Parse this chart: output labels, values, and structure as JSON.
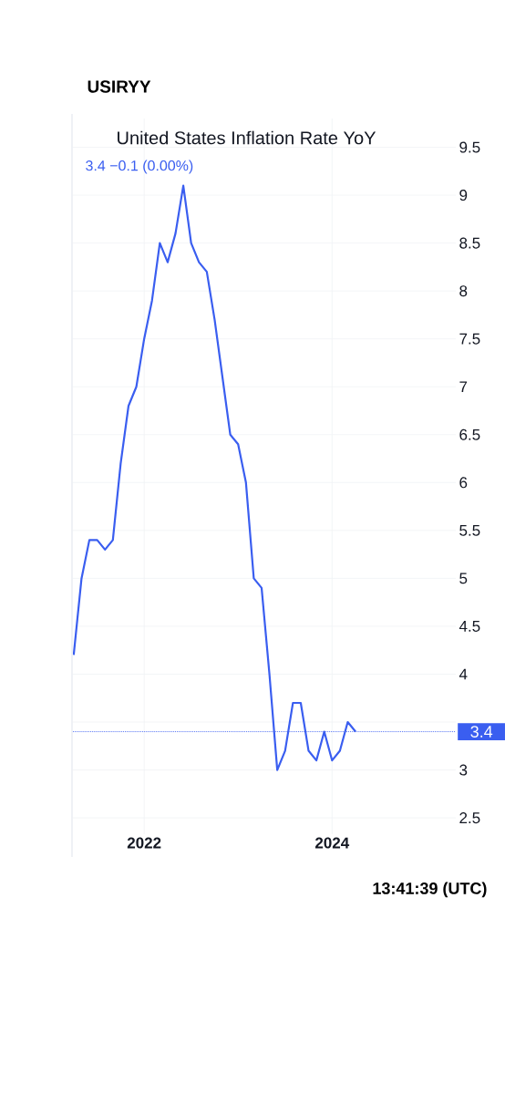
{
  "chart_data": {
    "type": "line",
    "title": "United States Inflation Rate YoY",
    "subtitle": "3.4  −0.1 (0.00%)",
    "x": [
      "2021-04",
      "2021-05",
      "2021-06",
      "2021-07",
      "2021-08",
      "2021-09",
      "2021-10",
      "2021-11",
      "2021-12",
      "2022-01",
      "2022-02",
      "2022-03",
      "2022-04",
      "2022-05",
      "2022-06",
      "2022-07",
      "2022-08",
      "2022-09",
      "2022-10",
      "2022-11",
      "2022-12",
      "2023-01",
      "2023-02",
      "2023-03",
      "2023-04",
      "2023-05",
      "2023-06",
      "2023-07",
      "2023-08",
      "2023-09",
      "2023-10",
      "2023-11",
      "2023-12",
      "2024-01",
      "2024-02",
      "2024-03",
      "2024-04"
    ],
    "series": [
      {
        "color": "#3a5ef0",
        "values": [
          4.2,
          5.0,
          5.4,
          5.4,
          5.3,
          5.4,
          6.2,
          6.8,
          7.0,
          7.5,
          7.9,
          8.5,
          8.3,
          8.6,
          9.1,
          8.5,
          8.3,
          8.2,
          7.7,
          7.1,
          6.5,
          6.4,
          6.0,
          5.0,
          4.9,
          4.0,
          3.0,
          3.2,
          3.7,
          3.7,
          3.2,
          3.1,
          3.4,
          3.1,
          3.2,
          3.5,
          3.4
        ]
      }
    ],
    "xlim": [
      "2021-03-28",
      "2025-04-25"
    ],
    "ylim": [
      2.33,
      9.8
    ],
    "xticks": [
      "2022",
      "2024"
    ],
    "yticks": [
      2.5,
      3,
      {
        "value": 3.5,
        "label": null
      },
      4,
      4.5,
      5,
      5.5,
      6,
      6.5,
      7,
      7.5,
      8,
      8.5,
      9,
      9.5
    ],
    "grid": true,
    "ref_lines": [
      {
        "axis": "y",
        "value": 3.4,
        "label": "3.4",
        "color": "#3a5ef0",
        "line_style": "dotted"
      }
    ],
    "annotations": [
      "USIRYY",
      "13:41:39 (UTC)"
    ]
  }
}
